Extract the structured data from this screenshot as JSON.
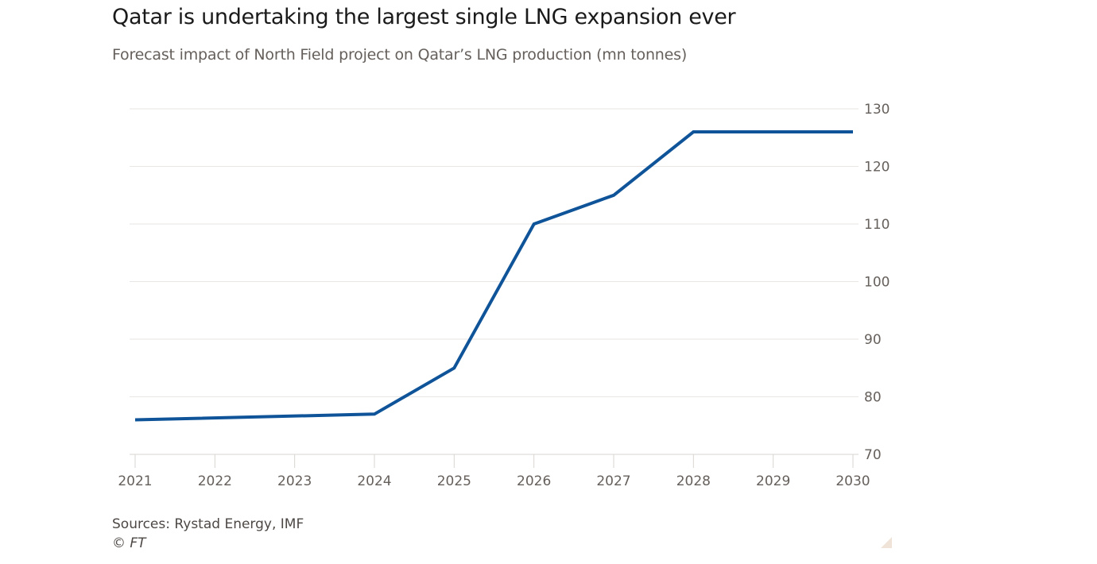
{
  "chart_data": {
    "type": "line",
    "title": "Qatar is undertaking the largest single LNG expansion ever",
    "subtitle": "Forecast impact of North Field project on Qatar’s LNG production (mn tonnes)",
    "xlabel": "",
    "ylabel": "",
    "x": [
      2021,
      2022,
      2023,
      2024,
      2025,
      2026,
      2027,
      2028,
      2029,
      2030
    ],
    "x_tick_labels": [
      "2021",
      "2022",
      "2023",
      "2024",
      "2025",
      "2026",
      "2027",
      "2028",
      "2029",
      "2030"
    ],
    "series": [
      {
        "name": "LNG production",
        "color": "#0f5499",
        "points": [
          {
            "x": 2021,
            "y": 76
          },
          {
            "x": 2024,
            "y": 77
          },
          {
            "x": 2025,
            "y": 85
          },
          {
            "x": 2026,
            "y": 110
          },
          {
            "x": 2027,
            "y": 115
          },
          {
            "x": 2028,
            "y": 126
          },
          {
            "x": 2030,
            "y": 126
          }
        ]
      }
    ],
    "ylim": [
      70,
      130
    ],
    "xlim": [
      2021,
      2030
    ],
    "y_ticks": [
      70,
      80,
      90,
      100,
      110,
      120,
      130
    ],
    "y_axis_side": "right",
    "grid": true,
    "legend": "none",
    "source": "Sources: Rystad Energy, IMF",
    "copyright": "© FT"
  },
  "colors": {
    "line": "#0f5499",
    "grid": "#e9e6e3",
    "text": "#66605c"
  }
}
